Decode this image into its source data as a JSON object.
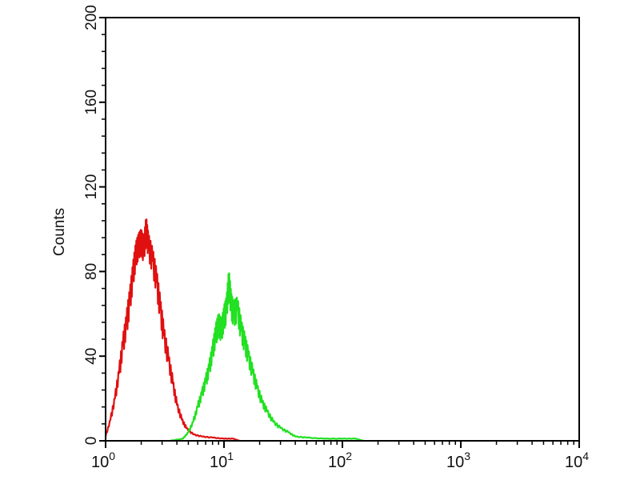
{
  "chart_data": {
    "type": "line",
    "title": "",
    "xlabel": "",
    "ylabel": "Counts",
    "xscale": "log",
    "xlim": [
      1,
      10000
    ],
    "ylim": [
      0,
      200
    ],
    "x_ticks": [
      {
        "base": "10",
        "exp": "0"
      },
      {
        "base": "10",
        "exp": "1"
      },
      {
        "base": "10",
        "exp": "2"
      },
      {
        "base": "10",
        "exp": "3"
      },
      {
        "base": "10",
        "exp": "4"
      }
    ],
    "y_ticks": [
      "0",
      "40",
      "80",
      "120",
      "160",
      "200"
    ],
    "grid": false,
    "series": [
      {
        "color": "#e01010",
        "points": [
          [
            1.0,
            2
          ],
          [
            1.1,
            10
          ],
          [
            1.2,
            20
          ],
          [
            1.3,
            32
          ],
          [
            1.4,
            45
          ],
          [
            1.5,
            55
          ],
          [
            1.6,
            66
          ],
          [
            1.7,
            78
          ],
          [
            1.8,
            88
          ],
          [
            1.9,
            92
          ],
          [
            2.0,
            94
          ],
          [
            2.1,
            90
          ],
          [
            2.2,
            100
          ],
          [
            2.3,
            92
          ],
          [
            2.5,
            85
          ],
          [
            2.7,
            75
          ],
          [
            2.9,
            62
          ],
          [
            3.1,
            50
          ],
          [
            3.4,
            38
          ],
          [
            3.7,
            27
          ],
          [
            4.0,
            17
          ],
          [
            4.4,
            10
          ],
          [
            4.8,
            6
          ],
          [
            5.5,
            3
          ],
          [
            6.5,
            2
          ],
          [
            8,
            1.5
          ],
          [
            10,
            1
          ],
          [
            12,
            1
          ],
          [
            13.5,
            0
          ]
        ]
      },
      {
        "color": "#22e022",
        "points": [
          [
            3.5,
            0
          ],
          [
            4.5,
            1
          ],
          [
            5,
            4
          ],
          [
            5.5,
            9
          ],
          [
            6,
            16
          ],
          [
            6.5,
            22
          ],
          [
            7,
            28
          ],
          [
            7.5,
            34
          ],
          [
            8,
            42
          ],
          [
            8.5,
            50
          ],
          [
            9,
            55
          ],
          [
            9.5,
            52
          ],
          [
            10,
            58
          ],
          [
            10.5,
            62
          ],
          [
            11,
            75
          ],
          [
            11.5,
            64
          ],
          [
            12,
            60
          ],
          [
            13,
            62
          ],
          [
            14,
            52
          ],
          [
            15,
            46
          ],
          [
            16,
            40
          ],
          [
            17.5,
            32
          ],
          [
            19,
            25
          ],
          [
            21,
            18
          ],
          [
            23,
            14
          ],
          [
            26,
            9
          ],
          [
            30,
            6
          ],
          [
            35,
            4
          ],
          [
            40,
            2
          ],
          [
            50,
            1.5
          ],
          [
            70,
            1
          ],
          [
            100,
            1
          ],
          [
            130,
            1
          ],
          [
            150,
            0
          ]
        ]
      }
    ]
  }
}
